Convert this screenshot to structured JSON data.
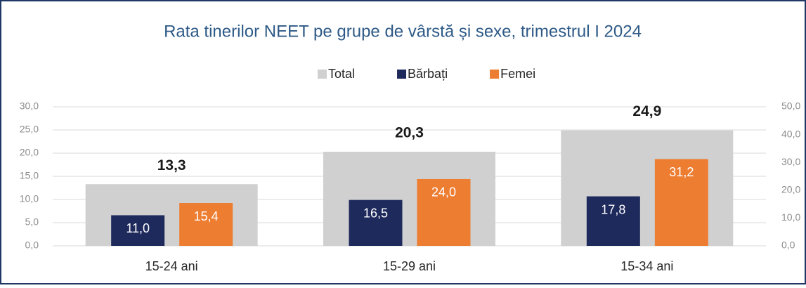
{
  "chart_data": {
    "type": "bar",
    "title": "Rata tinerilor NEET pe grupe de vârstă și sexe, trimestrul I 2024",
    "categories": [
      "15-24 ani",
      "15-29 ani",
      "15-34 ani"
    ],
    "series": [
      {
        "name": "Total",
        "color": "#d0d0d0",
        "values": [
          13.3,
          20.3,
          24.9
        ],
        "value_labels": [
          "13,3",
          "20,3",
          "24,9"
        ]
      },
      {
        "name": "Bărbați",
        "color": "#1f2a5c",
        "axis": "y2",
        "values": [
          11.0,
          16.5,
          17.8
        ],
        "value_labels": [
          "11,0",
          "16,5",
          "17,8"
        ]
      },
      {
        "name": "Femei",
        "color": "#ed7d31",
        "axis": "y2",
        "values": [
          15.4,
          24.0,
          31.2
        ],
        "value_labels": [
          "15,4",
          "24,0",
          "31,2"
        ]
      }
    ],
    "ylim": [
      0,
      30
    ],
    "yticks": [
      {
        "value": 0,
        "label": "0,0"
      },
      {
        "value": 5,
        "label": "5,0"
      },
      {
        "value": 10,
        "label": "10,0"
      },
      {
        "value": 15,
        "label": "15,0"
      },
      {
        "value": 20,
        "label": "20,0"
      },
      {
        "value": 25,
        "label": "25,0"
      },
      {
        "value": 30,
        "label": "30,0"
      }
    ],
    "y2lim": [
      0,
      50
    ],
    "y2ticks": [
      {
        "value": 0,
        "label": "0,0"
      },
      {
        "value": 10,
        "label": "10,0"
      },
      {
        "value": 20,
        "label": "20,0"
      },
      {
        "value": 30,
        "label": "30,0"
      },
      {
        "value": 40,
        "label": "40,0"
      },
      {
        "value": 50,
        "label": "50,0"
      }
    ],
    "grid": true,
    "legend": "top"
  }
}
